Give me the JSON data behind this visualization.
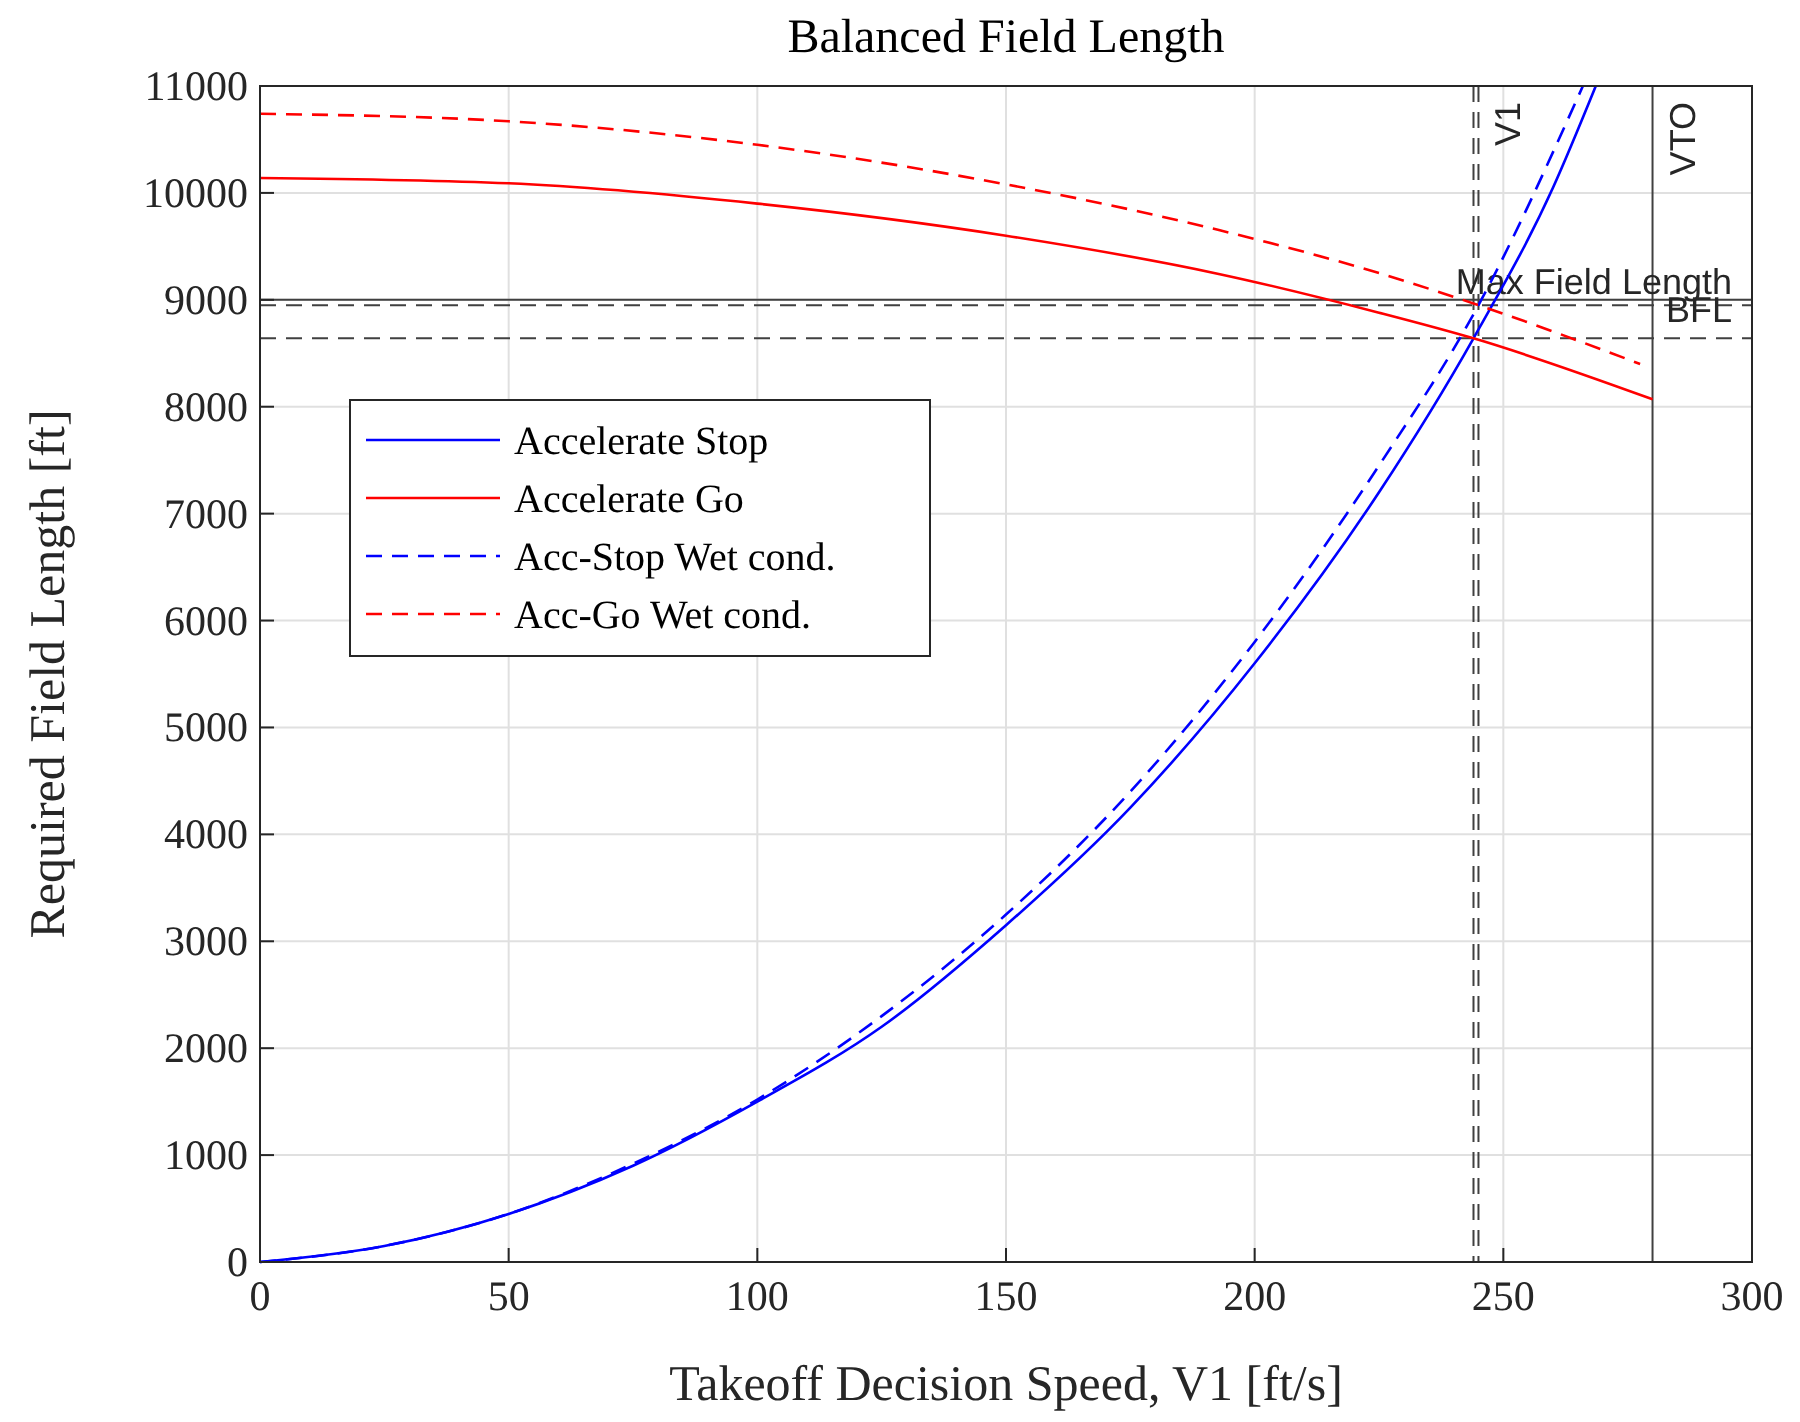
{
  "chart_data": {
    "type": "line",
    "title": "Balanced Field Length",
    "xlabel": "Takeoff Decision Speed, V1 [ft/s]",
    "ylabel": "Required Field Length [ft]",
    "xlim": [
      0,
      300
    ],
    "xticks": [
      0,
      50,
      100,
      150,
      200,
      250,
      300
    ],
    "ylim": [
      0,
      11000
    ],
    "yticks": [
      0,
      1000,
      2000,
      3000,
      4000,
      5000,
      6000,
      7000,
      8000,
      9000,
      10000,
      11000
    ],
    "grid": true,
    "legend": "left",
    "series": [
      {
        "name": "Accelerate Stop",
        "color": "#0000ff",
        "line_style": "solid",
        "x": [
          0,
          25,
          50,
          75,
          100,
          125,
          150,
          175,
          200,
          225,
          244,
          260,
          268.6
        ],
        "values": [
          0,
          150,
          450,
          900,
          1500,
          2200,
          3150,
          4250,
          5600,
          7200,
          8640,
          10050,
          11000
        ]
      },
      {
        "name": "Accelerate Go",
        "color": "#ff0000",
        "line_style": "solid",
        "x": [
          0,
          50,
          100,
          150,
          193,
          225,
          244,
          280
        ],
        "values": [
          10140,
          10090,
          9900,
          9600,
          9240,
          8880,
          8640,
          8070
        ]
      },
      {
        "name": "Acc-Stop Wet cond.",
        "color": "#0000ff",
        "line_style": "dashed",
        "x": [
          0,
          25,
          50,
          75,
          100,
          125,
          150,
          175,
          200,
          225,
          245,
          266
        ],
        "values": [
          0,
          150,
          450,
          920,
          1520,
          2300,
          3250,
          4400,
          5800,
          7450,
          8950,
          11000
        ]
      },
      {
        "name": "Acc-Go Wet cond.",
        "color": "#ff0000",
        "line_style": "dashed",
        "x": [
          0,
          50,
          100,
          150,
          193,
          225,
          245,
          277.5
        ],
        "values": [
          10740,
          10670,
          10450,
          10080,
          9650,
          9250,
          8950,
          8400
        ]
      }
    ],
    "ref_lines": [
      {
        "axis": "x",
        "value": 244,
        "label": null,
        "color": "#404040",
        "line_style": "dashed"
      },
      {
        "axis": "x",
        "value": 245,
        "label": "V1",
        "color": "#404040",
        "line_style": "dashed"
      },
      {
        "axis": "x",
        "value": 280,
        "label": "VTO",
        "color": "#404040",
        "line_style": "solid"
      },
      {
        "axis": "y",
        "value": 9000,
        "label": "Max Field Length",
        "color": "#404040",
        "line_style": "solid"
      },
      {
        "axis": "y",
        "value": 8950,
        "label": "BFL",
        "color": "#404040",
        "line_style": "dashed"
      },
      {
        "axis": "y",
        "value": 8640,
        "label": null,
        "color": "#404040",
        "line_style": "dashed"
      }
    ]
  }
}
